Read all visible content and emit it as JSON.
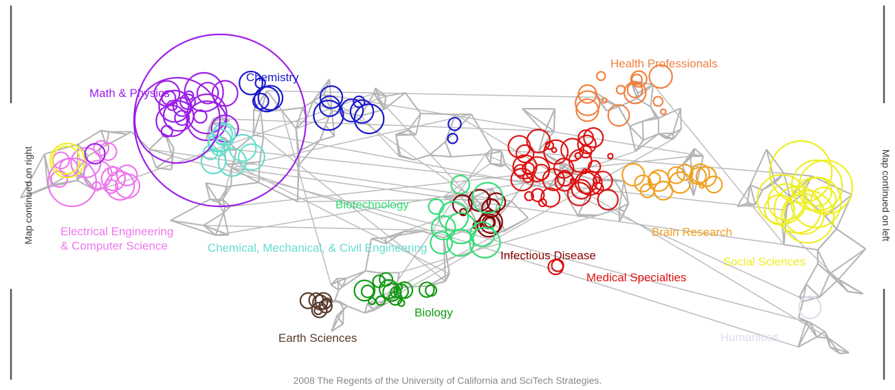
{
  "side_left": "Map continued on right",
  "side_right": "Map continued on left",
  "labels": {
    "math_physics": "Math & Physics",
    "chemistry": "Chemistry",
    "health": "Health Professionals",
    "ee_cs_1": "Electrical Engineering",
    "ee_cs_2": "& Computer Science",
    "biotech": "Biotechnology",
    "chem_eng": "Chemical, Mechanical, & Civil Engineering",
    "infectious": "Infectious Disease",
    "medical": "Medical Specialties",
    "brain": "Brain Research",
    "social": "Social Sciences",
    "humanities": "Humanities",
    "earth": "Earth Sciences",
    "biology": "Biology"
  },
  "footer": "2008  The Regents of the University of California and SciTech Strategies."
}
